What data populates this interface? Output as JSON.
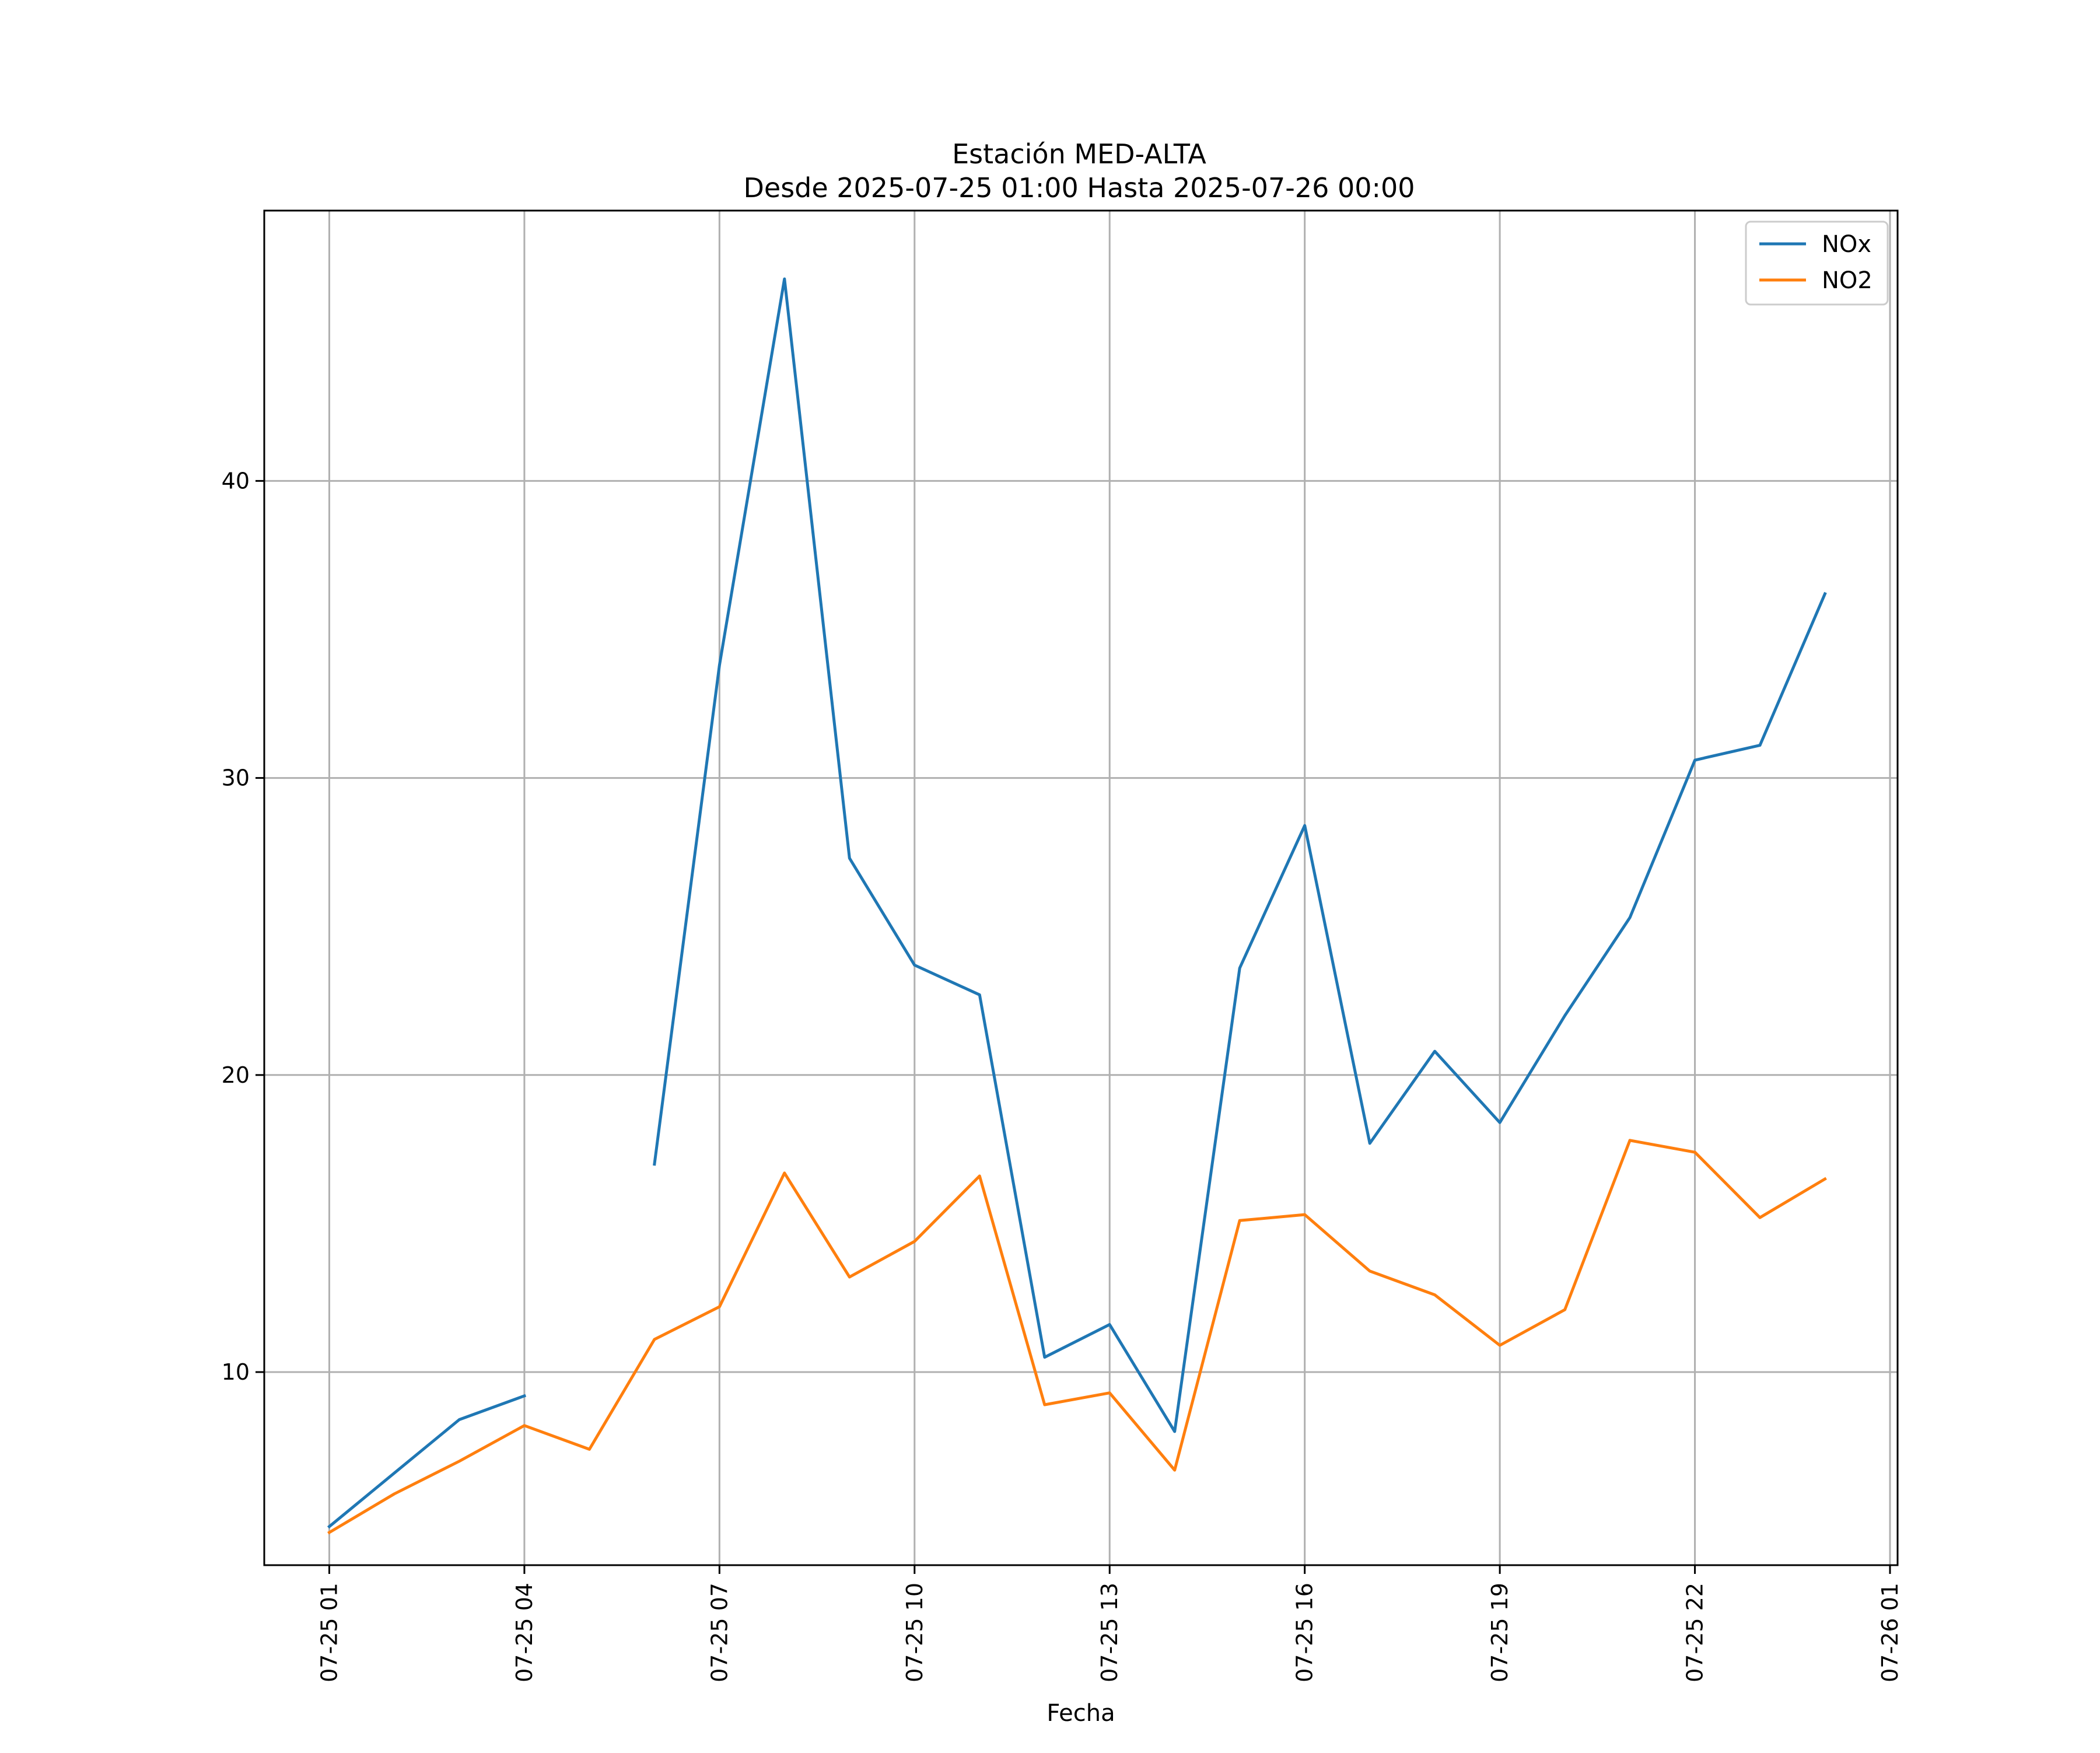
{
  "chart_data": {
    "type": "line",
    "title": "Estación MED-ALTA",
    "subtitle": "Desde 2025-07-25 01:00 Hasta 2025-07-26 00:00",
    "xlabel": "Fecha",
    "ylabel": "",
    "x": [
      "2025-07-25 01:00",
      "2025-07-25 02:00",
      "2025-07-25 03:00",
      "2025-07-25 04:00",
      "2025-07-25 05:00",
      "2025-07-25 06:00",
      "2025-07-25 07:00",
      "2025-07-25 08:00",
      "2025-07-25 09:00",
      "2025-07-25 10:00",
      "2025-07-25 11:00",
      "2025-07-25 12:00",
      "2025-07-25 13:00",
      "2025-07-25 14:00",
      "2025-07-25 15:00",
      "2025-07-25 16:00",
      "2025-07-25 17:00",
      "2025-07-25 18:00",
      "2025-07-25 19:00",
      "2025-07-25 20:00",
      "2025-07-25 21:00",
      "2025-07-25 22:00",
      "2025-07-25 23:00",
      "2025-07-26 00:00"
    ],
    "series": [
      {
        "name": "NOx",
        "color": "#1f77b4",
        "values": [
          4.8,
          6.6,
          8.4,
          9.2,
          null,
          17.0,
          33.8,
          46.8,
          27.3,
          23.7,
          22.7,
          10.5,
          11.6,
          8.0,
          23.6,
          28.4,
          17.7,
          20.8,
          18.4,
          22.0,
          25.3,
          30.6,
          31.1,
          36.2
        ]
      },
      {
        "name": "NO2",
        "color": "#ff7f0e",
        "values": [
          4.6,
          5.9,
          7.0,
          8.2,
          7.4,
          11.1,
          12.2,
          16.7,
          13.2,
          14.4,
          16.6,
          8.9,
          9.3,
          6.7,
          15.1,
          15.3,
          13.4,
          12.6,
          10.9,
          12.1,
          17.8,
          17.4,
          15.2,
          16.5
        ]
      }
    ],
    "xticks": [
      "07-25 01",
      "07-25 04",
      "07-25 07",
      "07-25 10",
      "07-25 13",
      "07-25 16",
      "07-25 19",
      "07-25 22",
      "07-26 01"
    ],
    "yticks": [
      "10",
      "20",
      "30",
      "40"
    ],
    "xlim": [
      "2025-07-25 00:00",
      "2025-07-26 01:07"
    ],
    "ylim": [
      3.5,
      49.1
    ],
    "grid": true,
    "legend": "top-right"
  }
}
